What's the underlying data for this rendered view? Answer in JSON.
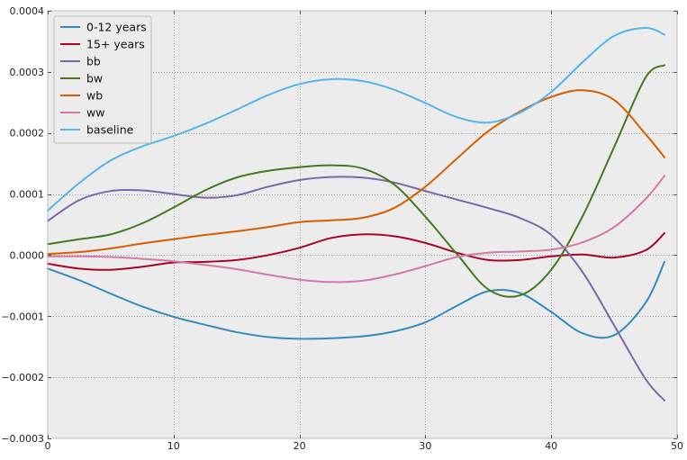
{
  "chart_data": {
    "type": "line",
    "title": "",
    "xlabel": "",
    "ylabel": "",
    "xlim": [
      0,
      50
    ],
    "ylim": [
      -0.0003,
      0.0004
    ],
    "xticks": [
      {
        "value": 0,
        "label": "0"
      },
      {
        "value": 10,
        "label": "10"
      },
      {
        "value": 20,
        "label": "20"
      },
      {
        "value": 30,
        "label": "30"
      },
      {
        "value": 40,
        "label": "40"
      },
      {
        "value": 50,
        "label": "50"
      }
    ],
    "yticks": [
      {
        "value": -0.0003,
        "label": "−0.0003"
      },
      {
        "value": -0.0002,
        "label": "−0.0002"
      },
      {
        "value": -0.0001,
        "label": "−0.0001"
      },
      {
        "value": 0.0,
        "label": "0.0000"
      },
      {
        "value": 0.0001,
        "label": "0.0001"
      },
      {
        "value": 0.0002,
        "label": "0.0002"
      },
      {
        "value": 0.0003,
        "label": "0.0003"
      },
      {
        "value": 0.0004,
        "label": "0.0004"
      }
    ],
    "grid": true,
    "legend_position": "top-left",
    "background_color": "#ececec",
    "series": [
      {
        "name": "0-12 years",
        "color": "#348abd",
        "x": [
          0,
          2.5,
          5,
          7.5,
          10,
          12.5,
          15,
          17.5,
          20,
          22.5,
          25,
          27.5,
          30,
          32.5,
          35,
          37.5,
          40,
          42.5,
          45,
          47.5,
          49
        ],
        "y": [
          -2.2e-05,
          -4.1e-05,
          -6.3e-05,
          -8.4e-05,
          -0.000101,
          -0.000114,
          -0.000126,
          -0.000134,
          -0.000137,
          -0.000136,
          -0.000133,
          -0.000125,
          -0.00011,
          -8.3e-05,
          -5.9e-05,
          -6.2e-05,
          -9.3e-05,
          -0.000128,
          -0.000131,
          -7.8e-05,
          -1.1e-05
        ]
      },
      {
        "name": "15+ years",
        "color": "#a60628",
        "x": [
          0,
          2.5,
          5,
          7.5,
          10,
          12.5,
          15,
          17.5,
          20,
          22.5,
          25,
          27.5,
          30,
          32.5,
          35,
          37.5,
          40,
          42.5,
          45,
          47.5,
          49
        ],
        "y": [
          -1.4e-05,
          -2.2e-05,
          -2.4e-05,
          -1.9e-05,
          -1.2e-05,
          -1.1e-05,
          -8e-06,
          0.0,
          1.2e-05,
          2.8e-05,
          3.4e-05,
          3.1e-05,
          2e-05,
          4e-06,
          -8e-06,
          -8e-06,
          -2e-06,
          1e-06,
          -4e-06,
          8e-06,
          3.6e-05
        ]
      },
      {
        "name": "bb",
        "color": "#7a68a6",
        "x": [
          0,
          2.5,
          5,
          7.5,
          10,
          12.5,
          15,
          17.5,
          20,
          22.5,
          25,
          27.5,
          30,
          32.5,
          35,
          37.5,
          40,
          42.5,
          45,
          47.5,
          49
        ],
        "y": [
          5.6e-05,
          9e-05,
          0.000105,
          0.000106,
          0.0001,
          9.4e-05,
          9.8e-05,
          0.000112,
          0.000123,
          0.000128,
          0.000127,
          0.000119,
          0.000105,
          9.1e-05,
          7.7e-05,
          6.1e-05,
          3.3e-05,
          -2.8e-05,
          -0.000115,
          -0.000203,
          -0.000238
        ]
      },
      {
        "name": "bw",
        "color": "#467821",
        "x": [
          0,
          2.5,
          5,
          7.5,
          10,
          12.5,
          15,
          17.5,
          20,
          22.5,
          25,
          27.5,
          30,
          32.5,
          35,
          37.5,
          40,
          42.5,
          45,
          47.5,
          49
        ],
        "y": [
          1.8e-05,
          2.6e-05,
          3.4e-05,
          5.2e-05,
          7.8e-05,
          0.000106,
          0.000127,
          0.000138,
          0.000144,
          0.000147,
          0.000142,
          0.000116,
          6.3e-05,
          2e-06,
          -5.6e-05,
          -6.6e-05,
          -2.4e-05,
          6.4e-05,
          0.000177,
          0.000291,
          0.000311
        ]
      },
      {
        "name": "wb",
        "color": "#d55e00",
        "x": [
          0,
          2.5,
          5,
          7.5,
          10,
          12.5,
          15,
          17.5,
          20,
          22.5,
          25,
          27.5,
          30,
          32.5,
          35,
          37.5,
          40,
          42.5,
          45,
          47.5,
          49
        ],
        "y": [
          2e-06,
          5e-06,
          1.1e-05,
          1.9e-05,
          2.6e-05,
          3.3e-05,
          3.9e-05,
          4.6e-05,
          5.4e-05,
          5.7e-05,
          6.1e-05,
          7.7e-05,
          0.000112,
          0.000158,
          0.000203,
          0.000235,
          0.000259,
          0.00027,
          0.000254,
          0.000198,
          0.00016
        ]
      },
      {
        "name": "ww",
        "color": "#cf7aa9",
        "x": [
          0,
          2.5,
          5,
          7.5,
          10,
          12.5,
          15,
          17.5,
          20,
          22.5,
          25,
          27.5,
          30,
          32.5,
          35,
          37.5,
          40,
          42.5,
          45,
          47.5,
          49
        ],
        "y": [
          -2e-06,
          -2e-06,
          -3e-06,
          -6e-06,
          -1e-05,
          -1.6e-05,
          -2.3e-05,
          -3.2e-05,
          -4e-05,
          -4.4e-05,
          -4.2e-05,
          -3.2e-05,
          -1.8e-05,
          -3e-06,
          4e-06,
          6e-06,
          9e-06,
          2.1e-05,
          4.6e-05,
          9.2e-05,
          0.00013
        ]
      },
      {
        "name": "baseline",
        "color": "#56b4e9",
        "x": [
          0,
          2.5,
          5,
          7.5,
          10,
          12.5,
          15,
          17.5,
          20,
          22.5,
          25,
          27.5,
          30,
          32.5,
          35,
          37.5,
          40,
          42.5,
          45,
          47.5,
          49
        ],
        "y": [
          7.3e-05,
          0.000118,
          0.000155,
          0.000178,
          0.000195,
          0.000215,
          0.000238,
          0.000262,
          0.00028,
          0.000288,
          0.000285,
          0.000271,
          0.000249,
          0.000226,
          0.000217,
          0.000233,
          0.000267,
          0.000316,
          0.000359,
          0.000372,
          0.000361
        ]
      }
    ]
  }
}
